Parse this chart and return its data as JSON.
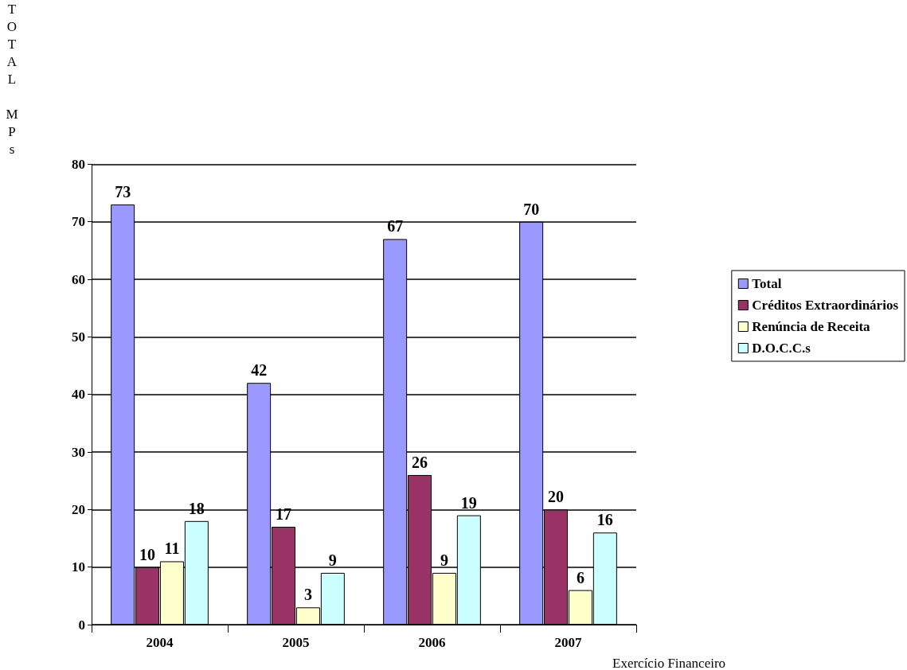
{
  "chart_data": {
    "type": "bar",
    "xlabel": "Exercício Financeiro",
    "ylabel": "TOTAL MPs",
    "categories": [
      "2004",
      "2005",
      "2006",
      "2007"
    ],
    "series": [
      {
        "name": "Total",
        "color": "#9999ff",
        "values": [
          73,
          42,
          67,
          70
        ]
      },
      {
        "name": "Créditos Extraordinários",
        "color": "#993366",
        "values": [
          10,
          17,
          26,
          20
        ]
      },
      {
        "name": "Renúncia de Receita",
        "color": "#ffffcc",
        "values": [
          11,
          3,
          9,
          6
        ]
      },
      {
        "name": "D.O.C.C.s",
        "color": "#ccffff",
        "values": [
          18,
          9,
          19,
          16
        ]
      }
    ],
    "ylim": [
      0,
      80
    ],
    "yticks": [
      0,
      10,
      20,
      30,
      40,
      50,
      60,
      70,
      80
    ],
    "grid": "y",
    "legend": "right",
    "data_labels": true
  }
}
